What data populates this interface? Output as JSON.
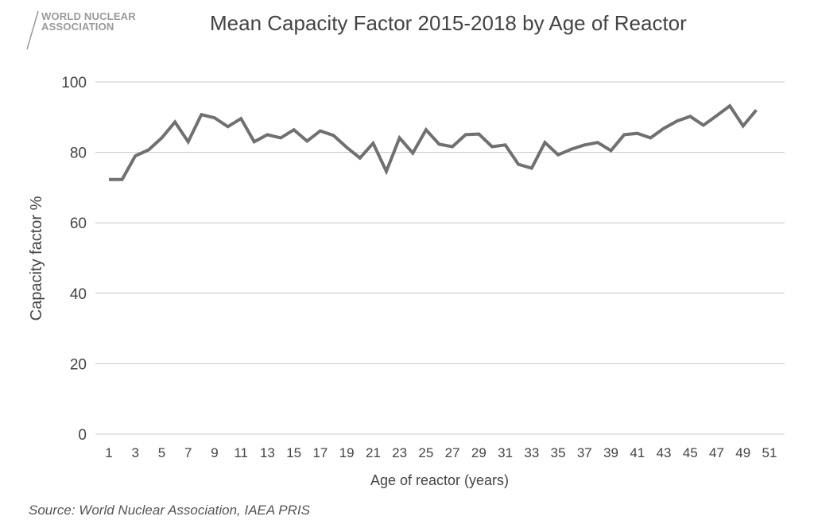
{
  "logo": {
    "line1": "WORLD NUCLEAR",
    "line2": "ASSOCIATION"
  },
  "source": "Source: World Nuclear Association, IAEA PRIS",
  "chart_data": {
    "type": "line",
    "title": "Mean Capacity Factor 2015-2018 by Age of Reactor",
    "xlabel": "Age of reactor (years)",
    "ylabel": "Capacity factor %",
    "ylim": [
      0,
      100
    ],
    "yticks": [
      0,
      20,
      40,
      60,
      80,
      100
    ],
    "xticks": [
      1,
      3,
      5,
      7,
      9,
      11,
      13,
      15,
      17,
      19,
      21,
      23,
      25,
      27,
      29,
      31,
      33,
      35,
      37,
      39,
      41,
      43,
      45,
      47,
      49,
      51
    ],
    "xlim": [
      1,
      51
    ],
    "grid": true,
    "series": [
      {
        "color": "#707070",
        "x": [
          1,
          2,
          3,
          4,
          5,
          6,
          7,
          8,
          9,
          10,
          11,
          12,
          13,
          14,
          15,
          16,
          17,
          18,
          19,
          20,
          21,
          22,
          23,
          24,
          25,
          26,
          27,
          28,
          29,
          30,
          31,
          32,
          33,
          34,
          35,
          36,
          37,
          38,
          39,
          40,
          41,
          42,
          43,
          44,
          45,
          46,
          47,
          48,
          49,
          50
        ],
        "y": [
          72.3,
          72.3,
          79,
          80.7,
          84.1,
          88.6,
          83,
          90.7,
          89.8,
          87.3,
          89.6,
          83,
          85,
          84.1,
          86.4,
          83.2,
          86.1,
          84.8,
          81.4,
          78.4,
          82.6,
          74.6,
          84.1,
          79.8,
          86.4,
          82.3,
          81.6,
          85,
          85.2,
          81.6,
          82.1,
          76.6,
          75.5,
          82.8,
          79.3,
          80.9,
          82.1,
          82.8,
          80.5,
          85,
          85.4,
          84.1,
          86.8,
          88.9,
          90.2,
          87.7,
          90.4,
          93.2,
          87.5,
          92
        ]
      }
    ]
  }
}
